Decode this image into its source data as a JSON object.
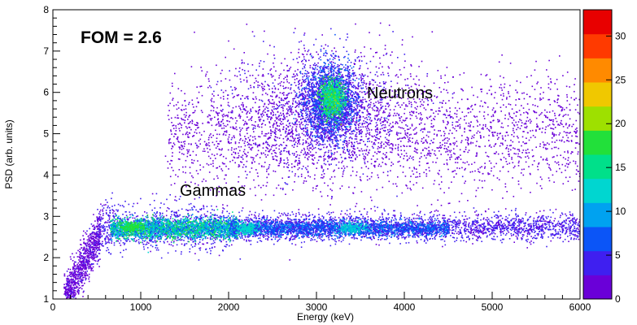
{
  "chart_data": {
    "type": "heatmap",
    "xlabel": "Energy (keV)",
    "ylabel": "PSD (arb. units)",
    "xlim": [
      0,
      6000
    ],
    "ylim": [
      1,
      8
    ],
    "x_ticks": [
      "0",
      "1000",
      "2000",
      "3000",
      "4000",
      "5000",
      "6000"
    ],
    "y_ticks": [
      "1",
      "2",
      "3",
      "4",
      "5",
      "6",
      "7",
      "8"
    ],
    "colorbar": {
      "range": [
        0,
        33
      ],
      "ticks": [
        "0",
        "5",
        "10",
        "15",
        "20",
        "25",
        "30"
      ],
      "palette": [
        "#6a00d8",
        "#3f1ff0",
        "#0b55f7",
        "#00a2f0",
        "#00d6d0",
        "#00e08a",
        "#22e03a",
        "#9ee000",
        "#f0c800",
        "#ff8a00",
        "#ff3a00",
        "#e80000"
      ]
    },
    "annotations": [
      {
        "id": "fom",
        "text": "FOM = 2.6"
      },
      {
        "id": "neutrons",
        "text": "Neutrons"
      },
      {
        "id": "gammas",
        "text": "Gammas"
      }
    ],
    "regions": [
      {
        "name": "gamma-band",
        "x_range": [
          500,
          6000
        ],
        "psd_center": 2.75,
        "peak_count": 18
      },
      {
        "name": "neutron-cluster",
        "x_center": 3150,
        "psd_center": 5.8,
        "peak_count": 22
      },
      {
        "name": "neutron-halo",
        "x_range": [
          1400,
          6000
        ],
        "psd_range": [
          4.2,
          6.8
        ],
        "peak_count": 1
      }
    ]
  }
}
